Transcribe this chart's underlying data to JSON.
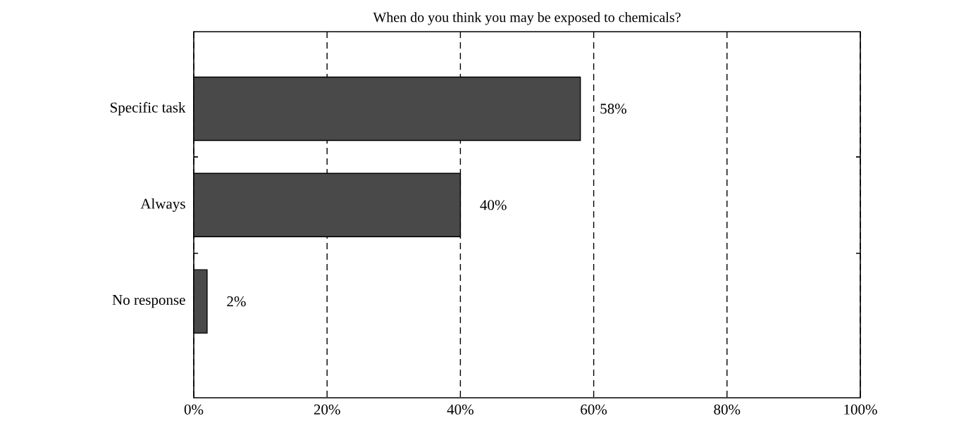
{
  "chart_data": {
    "type": "bar",
    "orientation": "horizontal",
    "title": "When do you think you may be exposed to chemicals?",
    "categories": [
      "Specific task",
      "Always",
      "No response"
    ],
    "values": [
      58,
      40,
      2
    ],
    "value_labels": [
      "58%",
      "40%",
      "2%"
    ],
    "color": "#494949",
    "xlim": [
      0,
      100
    ],
    "xticks": [
      {
        "value": 0,
        "label": "0%"
      },
      {
        "value": 20,
        "label": "20%"
      },
      {
        "value": 40,
        "label": "40%"
      },
      {
        "value": 60,
        "label": "60%"
      },
      {
        "value": 80,
        "label": "80%"
      },
      {
        "value": 100,
        "label": "100%"
      }
    ],
    "grid": "x",
    "line_style": "dashed"
  }
}
